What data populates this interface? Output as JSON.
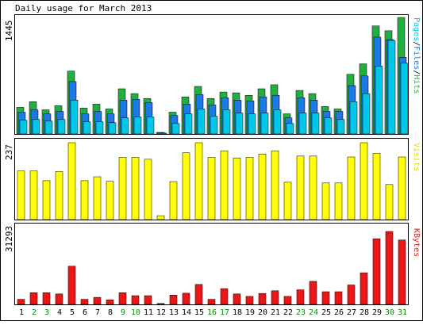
{
  "title": "Daily usage for March 2013",
  "days": [
    "1",
    "2",
    "3",
    "4",
    "5",
    "6",
    "7",
    "8",
    "9",
    "10",
    "11",
    "12",
    "13",
    "14",
    "15",
    "16",
    "17",
    "18",
    "19",
    "20",
    "21",
    "22",
    "23",
    "24",
    "25",
    "26",
    "27",
    "28",
    "29",
    "30",
    "31"
  ],
  "weekend_days": [
    "2",
    "3",
    "9",
    "10",
    "16",
    "17",
    "23",
    "24",
    "30",
    "31"
  ],
  "colors": {
    "background": "#ffffff",
    "frame": "#000000",
    "hits": "#20b040",
    "files": "#1e78e6",
    "pages": "#00c8e6",
    "visits": "#ffff00",
    "kbytes": "#e81818",
    "weekday_label": "#000000",
    "weekend_label": "#009000"
  },
  "chart_data": [
    {
      "type": "bar",
      "name_parts": [
        "Pages",
        "Files",
        "Hits"
      ],
      "name_separator": "/",
      "scale_label": "1445",
      "ymax": 1445,
      "series": [
        {
          "name": "Hits",
          "values": [
            330,
            400,
            300,
            350,
            780,
            320,
            370,
            310,
            560,
            500,
            440,
            20,
            270,
            460,
            590,
            440,
            520,
            510,
            480,
            560,
            610,
            250,
            540,
            500,
            340,
            310,
            740,
            870,
            1340,
            1280,
            1445
          ]
        },
        {
          "name": "Files",
          "values": [
            270,
            300,
            250,
            280,
            650,
            250,
            280,
            250,
            420,
            430,
            390,
            15,
            230,
            370,
            490,
            360,
            450,
            420,
            410,
            460,
            480,
            200,
            450,
            420,
            280,
            280,
            600,
            720,
            1200,
            1170,
            950
          ]
        },
        {
          "name": "Pages",
          "values": [
            170,
            180,
            160,
            180,
            420,
            150,
            150,
            140,
            200,
            210,
            210,
            10,
            130,
            250,
            310,
            220,
            300,
            260,
            250,
            260,
            300,
            130,
            260,
            260,
            200,
            180,
            400,
            500,
            840,
            1160,
            880
          ]
        }
      ]
    },
    {
      "type": "bar",
      "name": "Visits",
      "scale_label": "237",
      "ymax": 237,
      "series": [
        {
          "name": "Visits",
          "values": [
            150,
            150,
            120,
            148,
            237,
            120,
            132,
            118,
            192,
            192,
            186,
            12,
            117,
            206,
            237,
            192,
            212,
            190,
            192,
            202,
            212,
            115,
            196,
            196,
            113,
            113,
            193,
            237,
            204,
            108,
            193
          ]
        }
      ]
    },
    {
      "type": "bar",
      "name": "KBytes",
      "scale_label": "31293",
      "ymax": 31293,
      "series": [
        {
          "name": "KBytes",
          "values": [
            2100,
            4800,
            4800,
            4300,
            15700,
            2100,
            2900,
            1900,
            4800,
            3600,
            3600,
            400,
            3800,
            4600,
            8200,
            2100,
            6500,
            4300,
            3300,
            4500,
            5600,
            3300,
            6000,
            9500,
            5200,
            5200,
            8000,
            13000,
            27000,
            30000,
            26500
          ]
        }
      ]
    }
  ]
}
